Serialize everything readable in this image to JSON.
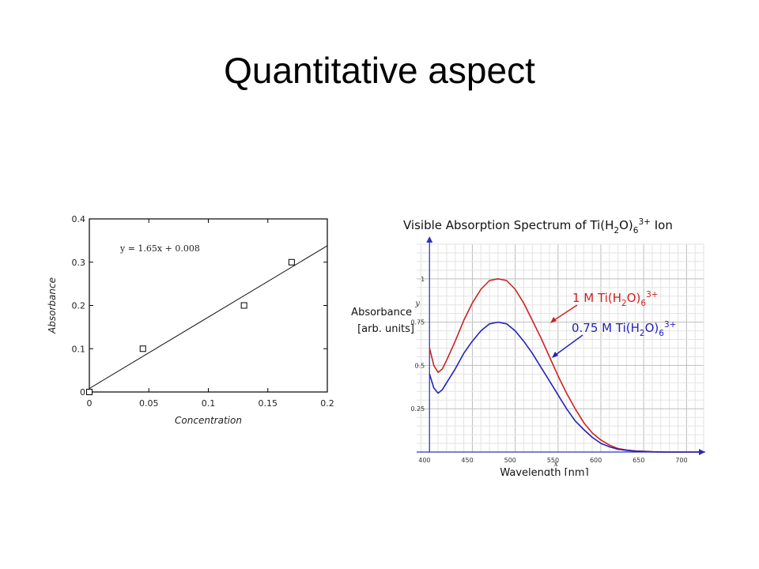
{
  "slide": {
    "title": "Quantitative aspect"
  },
  "chart_data": [
    {
      "type": "scatter",
      "title": "",
      "xlabel": "Concentration",
      "ylabel": "Absorbance",
      "xlim": [
        0,
        0.2
      ],
      "ylim": [
        0,
        0.4
      ],
      "x_ticks": [
        "0",
        "0.05",
        "0.1",
        "0.15",
        "0.2"
      ],
      "y_ticks": [
        "0",
        "0.1",
        "0.2",
        "0.3",
        "0.4"
      ],
      "x_tick_values": [
        0,
        0.05,
        0.1,
        0.15,
        0.2
      ],
      "y_tick_values": [
        0,
        0.1,
        0.2,
        0.3,
        0.4
      ],
      "points": [
        {
          "x": 0,
          "y": 0
        },
        {
          "x": 0.045,
          "y": 0.1
        },
        {
          "x": 0.13,
          "y": 0.2
        },
        {
          "x": 0.17,
          "y": 0.3
        }
      ],
      "fit": {
        "slope": 1.65,
        "intercept": 0.008,
        "label": "y = 1.65x + 0.008"
      },
      "grid": false,
      "marker": "open-square"
    },
    {
      "type": "line",
      "title_parts": [
        "Visible Absorption Spectrum of Ti(H",
        "2",
        "O)",
        "6",
        "3+",
        " Ion"
      ],
      "xlabel": "Wavelength [nm]",
      "ylabel_line1": "Absorbance",
      "ylabel_line2": "[arb. units]",
      "x_axis_letter": "x",
      "y_axis_letter": "y",
      "xlim": [
        385,
        720
      ],
      "ylim": [
        0,
        1.2
      ],
      "grid": true,
      "x_ticks": [
        "400",
        "450",
        "500",
        "550",
        "600",
        "650",
        "700"
      ],
      "x_tick_values": [
        400,
        450,
        500,
        550,
        600,
        650,
        700
      ],
      "y_ticks": [
        "0.25",
        "0.5",
        "0.75",
        "1"
      ],
      "y_tick_values": [
        0.25,
        0.5,
        0.75,
        1
      ],
      "series": [
        {
          "label_parts": [
            "1 M Ti(H",
            "2",
            "O)",
            "6",
            "3+"
          ],
          "color": "#cc2222",
          "x": [
            400,
            405,
            410,
            415,
            420,
            430,
            440,
            450,
            460,
            470,
            480,
            490,
            500,
            510,
            520,
            530,
            540,
            550,
            560,
            570,
            580,
            590,
            600,
            610,
            620,
            630,
            640,
            650,
            660,
            670,
            680,
            690,
            700,
            710,
            720
          ],
          "y": [
            0.6,
            0.5,
            0.46,
            0.48,
            0.53,
            0.64,
            0.76,
            0.86,
            0.94,
            0.99,
            1.0,
            0.99,
            0.94,
            0.86,
            0.76,
            0.66,
            0.55,
            0.44,
            0.34,
            0.25,
            0.17,
            0.11,
            0.07,
            0.04,
            0.02,
            0.012,
            0.007,
            0.004,
            0.002,
            0.001,
            0.0,
            0.0,
            0.0,
            0.0,
            0.0
          ]
        },
        {
          "label_parts": [
            "0.75 M Ti(H",
            "2",
            "O)",
            "6",
            "3+"
          ],
          "color": "#2222bb",
          "x": [
            400,
            405,
            410,
            415,
            420,
            430,
            440,
            450,
            460,
            470,
            480,
            490,
            500,
            510,
            520,
            530,
            540,
            550,
            560,
            570,
            580,
            590,
            600,
            610,
            620,
            630,
            640,
            650,
            660,
            670,
            680,
            690,
            700,
            710,
            720
          ],
          "y": [
            0.45,
            0.37,
            0.34,
            0.36,
            0.4,
            0.48,
            0.57,
            0.64,
            0.7,
            0.74,
            0.75,
            0.74,
            0.7,
            0.64,
            0.57,
            0.49,
            0.41,
            0.33,
            0.25,
            0.18,
            0.13,
            0.085,
            0.05,
            0.03,
            0.016,
            0.009,
            0.005,
            0.003,
            0.001,
            0.0,
            0.0,
            0.0,
            0.0,
            0.0,
            0.0
          ]
        }
      ]
    }
  ]
}
